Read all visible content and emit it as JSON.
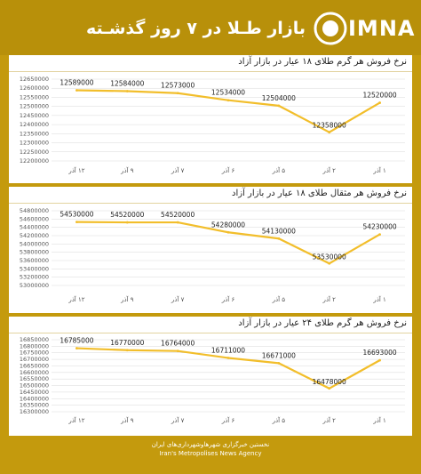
{
  "header": {
    "title": "بازار طـلا در ۷ روز گذشـته",
    "logo_text": "IMNA"
  },
  "footer": {
    "line1": "نخستین خبرگزاری شهرها‌و‌شهرداری‌های ایران",
    "line2": "Iran's Metropolises News Agency"
  },
  "colors": {
    "frame": "#c49a0d",
    "line": "#f2be2b",
    "grid": "#d9d9d9"
  },
  "chart_data": [
    {
      "type": "line",
      "title": "نرخ فروش هر گرم طلای ۱۸ عیار در بازار آزاد",
      "categories": [
        "۱ آذر",
        "۲ آذر",
        "۵ آذر",
        "۶ آذر",
        "۷ آذر",
        "۹ آذر",
        "۱۲ آذر"
      ],
      "values": [
        12520000,
        12358000,
        12504000,
        12534000,
        12573000,
        12584000,
        12589000
      ],
      "data_labels": [
        "12520000",
        "12358000",
        "12504000",
        "12534000",
        "12573000",
        "12584000",
        "12589000"
      ],
      "yticks": [
        "12650000",
        "12600000",
        "12550000",
        "12500000",
        "12450000",
        "12400000",
        "12350000",
        "12300000",
        "12250000",
        "12200000"
      ],
      "ylim": [
        12200000,
        12650000
      ]
    },
    {
      "type": "line",
      "title": "نرخ فروش هر مثقال طلای ۱۸ عیار در بازار آزاد",
      "categories": [
        "۱ آذر",
        "۲ آذر",
        "۵ آذر",
        "۶ آذر",
        "۷ آذر",
        "۹ آذر",
        "۱۲ آذر"
      ],
      "values": [
        54230000,
        53530000,
        54130000,
        54280000,
        54520000,
        54520000,
        54530000
      ],
      "data_labels": [
        "54230000",
        "53530000",
        "54130000",
        "54280000",
        "54520000",
        "54520000",
        "54530000"
      ],
      "yticks": [
        "54800000",
        "54600000",
        "54400000",
        "54200000",
        "54000000",
        "53800000",
        "53600000",
        "53400000",
        "53200000",
        "53000000"
      ],
      "ylim": [
        53000000,
        54800000
      ]
    },
    {
      "type": "line",
      "title": "نرخ فروش هر گرم طلای ۲۴ عیار در بازار آزاد",
      "categories": [
        "۱ آذر",
        "۲ آذر",
        "۵ آذر",
        "۶ آذر",
        "۷ آذر",
        "۹ آذر",
        "۱۲ آذر"
      ],
      "values": [
        16693000,
        16478000,
        16671000,
        16711000,
        16764000,
        16770000,
        16785000
      ],
      "data_labels": [
        "16693000",
        "16478000",
        "16671000",
        "16711000",
        "16764000",
        "16770000",
        "16785000"
      ],
      "yticks": [
        "16850000",
        "16800000",
        "16750000",
        "16700000",
        "16650000",
        "16600000",
        "16550000",
        "16500000",
        "16450000",
        "16400000",
        "16350000",
        "16300000"
      ],
      "ylim": [
        16300000,
        16850000
      ]
    }
  ]
}
